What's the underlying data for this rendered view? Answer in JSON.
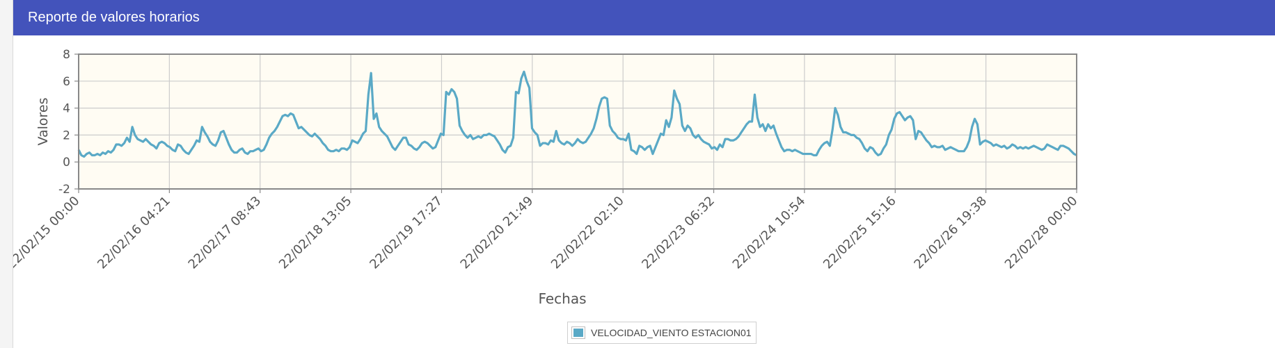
{
  "panel": {
    "title": "Reporte de valores horarios"
  },
  "colors": {
    "header": "#4353bb",
    "series": "#5aa9c6",
    "plot_background": "#fffcf3",
    "grid": "#cccccc"
  },
  "chart_data": {
    "type": "line",
    "title": "",
    "xlabel": "Fechas",
    "ylabel": "Valores",
    "ylim": [
      -2,
      8
    ],
    "yticks": [
      -2,
      0,
      2,
      4,
      6,
      8
    ],
    "xticks": [
      "22/02/15 00:00",
      "22/02/16 04:21",
      "22/02/17 08:43",
      "22/02/18 13:05",
      "22/02/19 17:27",
      "22/02/20 21:49",
      "22/02/22 02:10",
      "22/02/23 06:32",
      "22/02/24 10:54",
      "22/02/25 15:16",
      "22/02/26 19:38",
      "22/02/28 00:00"
    ],
    "grid": true,
    "legend_position": "bottom-center",
    "series": [
      {
        "name": "VELOCIDAD_VIENTO ESTACION01",
        "x_start": "22/02/15 00:00",
        "x_end": "22/02/28 00:00",
        "values": [
          0.9,
          0.5,
          0.4,
          0.6,
          0.7,
          0.5,
          0.5,
          0.6,
          0.5,
          0.7,
          0.6,
          0.8,
          0.7,
          0.9,
          1.3,
          1.3,
          1.2,
          1.4,
          1.8,
          1.5,
          2.6,
          2.0,
          1.7,
          1.6,
          1.5,
          1.7,
          1.5,
          1.3,
          1.2,
          1.0,
          1.4,
          1.5,
          1.4,
          1.2,
          1.1,
          0.9,
          0.8,
          1.3,
          1.2,
          0.9,
          0.7,
          0.6,
          0.9,
          1.2,
          1.6,
          1.5,
          2.6,
          2.2,
          1.9,
          1.5,
          1.3,
          1.2,
          1.6,
          2.2,
          2.3,
          1.8,
          1.3,
          0.9,
          0.7,
          0.7,
          0.9,
          1.0,
          0.7,
          0.6,
          0.8,
          0.8,
          0.9,
          1.0,
          0.8,
          0.9,
          1.3,
          1.8,
          2.1,
          2.3,
          2.6,
          3.0,
          3.4,
          3.5,
          3.4,
          3.6,
          3.5,
          3.0,
          2.5,
          2.6,
          2.4,
          2.2,
          2.0,
          1.9,
          2.1,
          1.9,
          1.7,
          1.4,
          1.2,
          0.9,
          0.8,
          0.8,
          0.9,
          0.8,
          1.0,
          1.0,
          0.9,
          1.1,
          1.6,
          1.5,
          1.4,
          1.7,
          2.1,
          2.3,
          5.0,
          6.6,
          3.2,
          3.6,
          2.6,
          2.3,
          2.1,
          1.9,
          1.5,
          1.1,
          0.9,
          1.2,
          1.5,
          1.8,
          1.8,
          1.3,
          1.2,
          1.0,
          0.9,
          1.1,
          1.4,
          1.5,
          1.4,
          1.2,
          1.0,
          1.1,
          1.6,
          2.1,
          2.0,
          5.2,
          5.0,
          5.4,
          5.2,
          4.7,
          2.7,
          2.3,
          2.0,
          1.8,
          2.0,
          1.7,
          1.8,
          1.9,
          1.8,
          2.0,
          2.0,
          2.1,
          2.0,
          1.9,
          1.6,
          1.3,
          0.9,
          0.7,
          1.1,
          1.2,
          1.8,
          5.2,
          5.1,
          6.2,
          6.7,
          6.0,
          5.5,
          2.5,
          2.2,
          2.0,
          1.2,
          1.4,
          1.4,
          1.3,
          1.6,
          1.5,
          2.3,
          1.6,
          1.4,
          1.3,
          1.5,
          1.4,
          1.2,
          1.4,
          1.7,
          1.5,
          1.4,
          1.5,
          1.8,
          2.1,
          2.5,
          3.2,
          4.1,
          4.7,
          4.8,
          4.7,
          2.7,
          2.3,
          2.1,
          1.8,
          1.7,
          1.7,
          1.6,
          2.1,
          0.9,
          0.8,
          0.6,
          1.2,
          1.1,
          0.9,
          1.1,
          1.2,
          0.6,
          1.1,
          1.6,
          2.1,
          2.0,
          3.1,
          2.6,
          3.3,
          5.3,
          4.7,
          4.3,
          2.7,
          2.3,
          2.7,
          2.5,
          2.0,
          1.8,
          2.0,
          1.7,
          1.5,
          1.4,
          1.3,
          1.0,
          1.1,
          0.9,
          1.3,
          1.1,
          1.7,
          1.7,
          1.6,
          1.6,
          1.7,
          1.9,
          2.2,
          2.5,
          2.8,
          3.0,
          3.0,
          5.0,
          3.3,
          2.6,
          2.8,
          2.3,
          2.8,
          2.5,
          2.7,
          2.1,
          1.6,
          1.1,
          0.8,
          0.9,
          0.9,
          0.8,
          0.9,
          0.8,
          0.7,
          0.6,
          0.6,
          0.6,
          0.6,
          0.5,
          0.5,
          0.9,
          1.2,
          1.4,
          1.5,
          1.2,
          2.4,
          4.0,
          3.5,
          2.6,
          2.2,
          2.2,
          2.1,
          2.0,
          2.0,
          1.8,
          1.7,
          1.4,
          1.0,
          0.8,
          1.1,
          1.0,
          0.7,
          0.5,
          0.6,
          1.0,
          1.3,
          2.0,
          2.4,
          3.2,
          3.6,
          3.7,
          3.4,
          3.1,
          3.3,
          3.4,
          3.1,
          1.7,
          2.3,
          2.2,
          1.9,
          1.6,
          1.4,
          1.1,
          1.2,
          1.1,
          1.1,
          1.2,
          0.9,
          1.0,
          1.1,
          1.0,
          0.9,
          0.8,
          0.8,
          0.8,
          1.1,
          1.6,
          2.6,
          3.2,
          2.8,
          1.3,
          1.5,
          1.6,
          1.5,
          1.4,
          1.2,
          1.3,
          1.2,
          1.1,
          1.2,
          1.0,
          1.1,
          1.3,
          1.2,
          1.0,
          1.1,
          1.0,
          1.1,
          1.0,
          1.1,
          1.2,
          1.1,
          1.0,
          0.9,
          1.0,
          1.3,
          1.2,
          1.1,
          1.0,
          0.9,
          1.2,
          1.2,
          1.1,
          1.0,
          0.8,
          0.6,
          0.5
        ]
      }
    ]
  }
}
